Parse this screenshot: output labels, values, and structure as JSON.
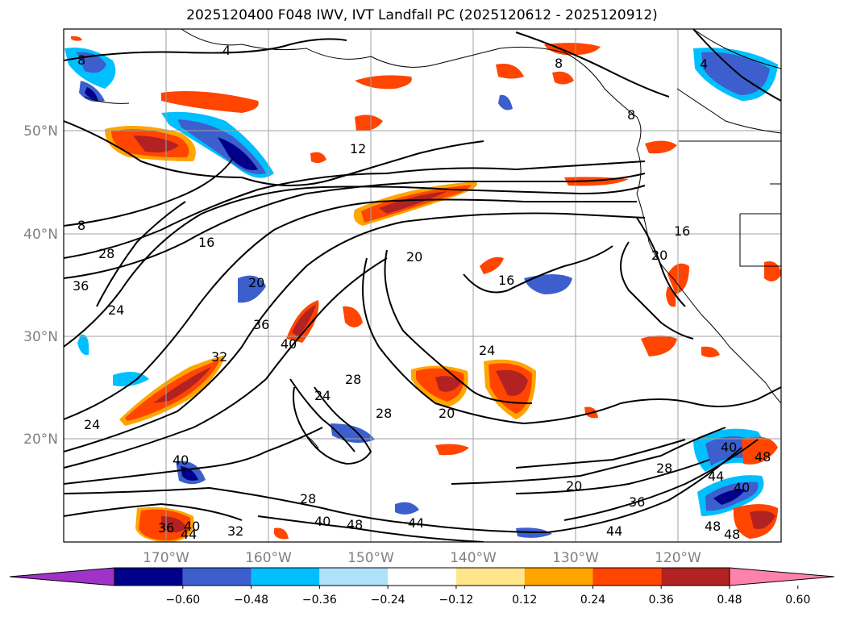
{
  "title": "2025120400 F048 IWV, IVT Landfall PC (2025120612 - 2025120912)",
  "lat_labels": [
    "50°N",
    "40°N",
    "30°N",
    "20°N"
  ],
  "lon_labels": [
    "170°W",
    "160°W",
    "150°W",
    "140°W",
    "130°W",
    "120°W"
  ],
  "contour_labels": [
    "4",
    "8",
    "8",
    "4",
    "8",
    "12",
    "8",
    "16",
    "28",
    "36",
    "24",
    "20",
    "36",
    "40",
    "32",
    "20",
    "16",
    "24",
    "16",
    "20",
    "28",
    "24",
    "28",
    "20",
    "24",
    "40",
    "28",
    "40",
    "48",
    "44",
    "36",
    "44",
    "32",
    "40",
    "20",
    "28",
    "36",
    "44",
    "40",
    "44",
    "48",
    "40",
    "48",
    "48"
  ],
  "colorbar": {
    "tick_labels": [
      "−0.60",
      "−0.48",
      "−0.36",
      "−0.24",
      "−0.12",
      "0.12",
      "0.24",
      "0.36",
      "0.48",
      "0.60"
    ],
    "colors": [
      "#a032c8",
      "#00008b",
      "#3c5fcd",
      "#00bfff",
      "#afe1fa",
      "#ffffff",
      "#ffe68c",
      "#ffa500",
      "#ff4500",
      "#b22222",
      "#ff82aa"
    ]
  }
}
